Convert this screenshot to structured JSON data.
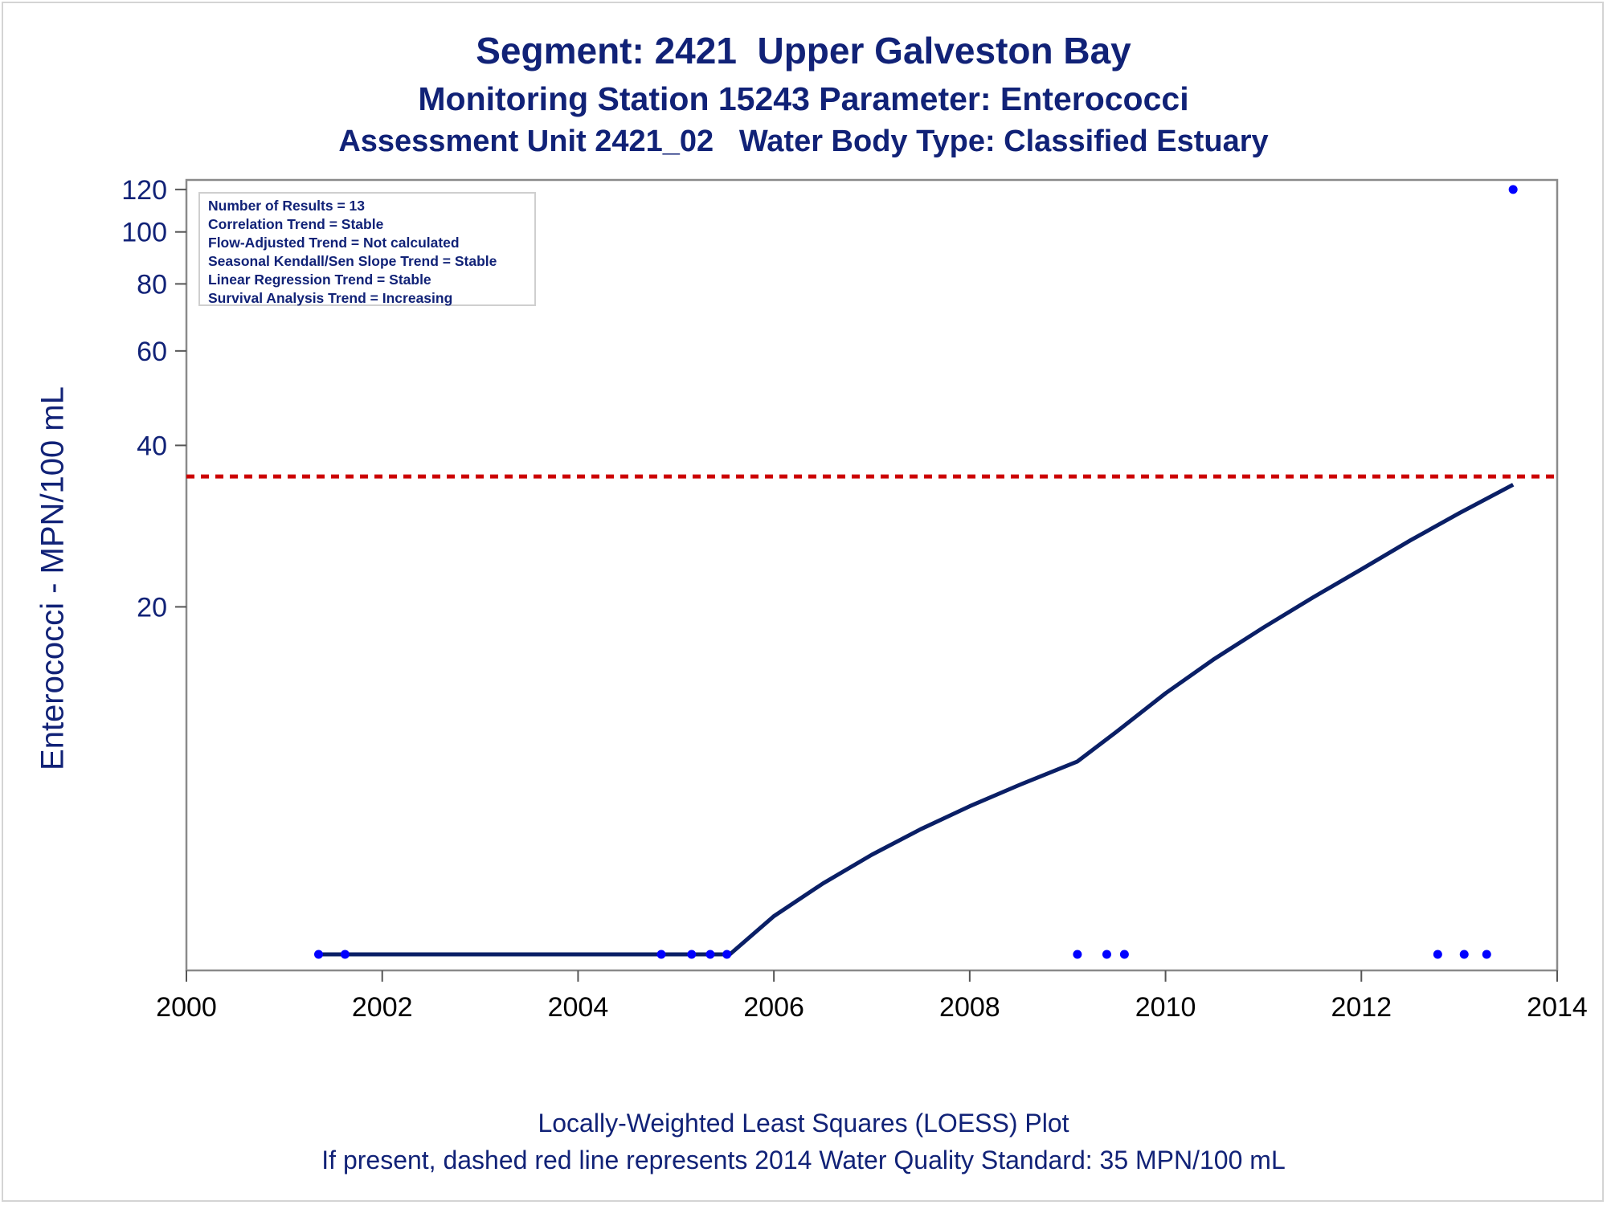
{
  "titles": {
    "line1": "Segment: 2421  Upper Galveston Bay",
    "line2": "Monitoring Station 15243 Parameter: Enterococci",
    "line3": "Assessment Unit 2421_02   Water Body Type: Classified Estuary"
  },
  "inset": [
    "Number of Results = 13",
    "Correlation Trend = Stable",
    "Flow-Adjusted Trend = Not calculated",
    "Seasonal Kendall/Sen Slope Trend = Stable",
    "Linear Regression Trend = Stable",
    "Survival Analysis Trend = Increasing"
  ],
  "footnotes": {
    "line1": "Locally-Weighted Least Squares (LOESS) Plot",
    "line2": "If present, dashed red line represents 2014 Water Quality Standard: 35 MPN/100 mL"
  },
  "chart_data": {
    "type": "scatter",
    "title": "Segment: 2421  Upper Galveston Bay",
    "ylabel": "Enterococci - MPN/100 mL",
    "xlabel": "",
    "y_scale": "log",
    "xlim": [
      2000,
      2014
    ],
    "ylim": [
      4.2,
      125
    ],
    "x_ticks": [
      2000,
      2002,
      2004,
      2006,
      2008,
      2010,
      2012,
      2014
    ],
    "y_ticks": [
      20,
      40,
      60,
      80,
      100,
      120
    ],
    "grid": false,
    "points": [
      {
        "x": 2001.35,
        "y": 4.5
      },
      {
        "x": 2001.62,
        "y": 4.5
      },
      {
        "x": 2004.85,
        "y": 4.5
      },
      {
        "x": 2005.16,
        "y": 4.5
      },
      {
        "x": 2005.35,
        "y": 4.5
      },
      {
        "x": 2005.52,
        "y": 4.5
      },
      {
        "x": 2009.1,
        "y": 4.5
      },
      {
        "x": 2009.4,
        "y": 4.5
      },
      {
        "x": 2009.58,
        "y": 4.5
      },
      {
        "x": 2012.78,
        "y": 4.5
      },
      {
        "x": 2013.05,
        "y": 4.5
      },
      {
        "x": 2013.28,
        "y": 4.5
      },
      {
        "x": 2013.55,
        "y": 120
      }
    ],
    "loess": [
      {
        "x": 2001.35,
        "y": 4.5
      },
      {
        "x": 2005.55,
        "y": 4.5
      },
      {
        "x": 2006.0,
        "y": 5.3
      },
      {
        "x": 2006.5,
        "y": 6.1
      },
      {
        "x": 2007.0,
        "y": 6.9
      },
      {
        "x": 2007.5,
        "y": 7.7
      },
      {
        "x": 2008.0,
        "y": 8.5
      },
      {
        "x": 2008.5,
        "y": 9.3
      },
      {
        "x": 2009.1,
        "y": 10.3
      },
      {
        "x": 2009.5,
        "y": 11.7
      },
      {
        "x": 2010.0,
        "y": 13.8
      },
      {
        "x": 2010.5,
        "y": 16.0
      },
      {
        "x": 2011.0,
        "y": 18.3
      },
      {
        "x": 2011.5,
        "y": 20.8
      },
      {
        "x": 2012.0,
        "y": 23.5
      },
      {
        "x": 2012.5,
        "y": 26.6
      },
      {
        "x": 2013.0,
        "y": 29.9
      },
      {
        "x": 2013.55,
        "y": 33.8
      }
    ],
    "standard_line": {
      "y": 35
    },
    "colors": {
      "points": "#0000ff",
      "loess": "#0a1f66",
      "standard": "#cc0000",
      "text": "#112277",
      "axis": "#8a8a8a"
    }
  }
}
